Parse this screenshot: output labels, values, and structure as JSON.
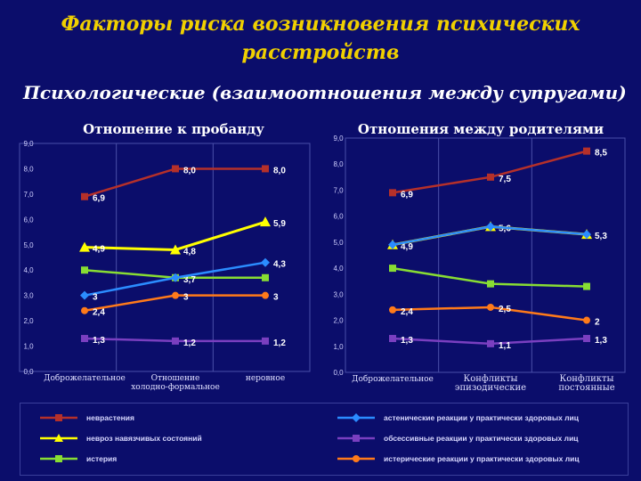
{
  "title_line1": "Факторы риска возникновения психических",
  "title_line2": "расстройств",
  "subtitle": "Психологические (взаимоотношения между супругами)",
  "colors": {
    "background": "#0b0d6b",
    "title": "#f0d000",
    "grid": "#4a4fa8"
  },
  "legend": [
    {
      "name": "неврастения",
      "color": "#b5302a",
      "marker": "square"
    },
    {
      "name": "невроз навязчивых состояний",
      "color": "#ffff00",
      "marker": "triangle"
    },
    {
      "name": "истерия",
      "color": "#88dd33",
      "marker": "square"
    },
    {
      "name": "астенические реакции у практически здоровых лиц",
      "color": "#2b8cff",
      "marker": "diamond"
    },
    {
      "name": "обсессивные реакции у практически здоровых лиц",
      "color": "#7a3fc0",
      "marker": "square"
    },
    {
      "name": "истерические реакции у практически здоровых лиц",
      "color": "#ff7a1a",
      "marker": "circle"
    }
  ],
  "chart_data": [
    {
      "type": "line",
      "title": "Отношение к пробанду",
      "categories": [
        "Доброжелательное",
        "Отношение холодно-формальное",
        "неровное"
      ],
      "y_tick_labels": [
        "0,0",
        "1,0",
        "2,0",
        "3,0",
        "4,0",
        "5,0",
        "6,0",
        "7,0",
        "8,0",
        "9,0"
      ],
      "ylim": [
        0,
        9
      ],
      "grid": true,
      "series": [
        {
          "name": "неврастения",
          "values": [
            6.9,
            8.0,
            8.0
          ],
          "labels": [
            "6,9",
            "8,0",
            "8,0"
          ]
        },
        {
          "name": "невроз навязчивых состояний",
          "values": [
            4.9,
            4.8,
            5.9
          ],
          "labels": [
            "4,9",
            "4,8",
            "5,9"
          ]
        },
        {
          "name": "истерия",
          "values": [
            4.0,
            3.7,
            3.7
          ],
          "labels": [
            "",
            "3,7",
            ""
          ]
        },
        {
          "name": "астенические реакции у практически здоровых лиц",
          "values": [
            3.0,
            3.7,
            4.3
          ],
          "labels": [
            "3",
            "",
            "4,3"
          ]
        },
        {
          "name": "обсессивные реакции у практически здоровых лиц",
          "values": [
            1.3,
            1.2,
            1.2
          ],
          "labels": [
            "1,3",
            "1,2",
            "1,2"
          ]
        },
        {
          "name": "истерические реакции у практически здоровых лиц",
          "values": [
            2.4,
            3.0,
            3.0
          ],
          "labels": [
            "2,4",
            "3",
            "3"
          ]
        }
      ]
    },
    {
      "type": "line",
      "title": "Отношения между родителями",
      "categories": [
        "Доброжелательное",
        "Конфликты эпизодические",
        "Конфликты постоянные"
      ],
      "y_tick_labels": [
        "0,0",
        "1,0",
        "2,0",
        "3,0",
        "4,0",
        "5,0",
        "6,0",
        "7,0",
        "8,0",
        "9,0"
      ],
      "ylim": [
        0,
        9
      ],
      "grid": true,
      "series": [
        {
          "name": "неврастения",
          "values": [
            6.9,
            7.5,
            8.5
          ],
          "labels": [
            "6,9",
            "7,5",
            "8,5"
          ]
        },
        {
          "name": "невроз навязчивых состояний",
          "values": [
            4.9,
            5.6,
            5.3
          ],
          "labels": [
            "4,9",
            "5,6",
            "5,3"
          ]
        },
        {
          "name": "истерия",
          "values": [
            4.0,
            3.4,
            3.3
          ],
          "labels": [
            "",
            "",
            ""
          ]
        },
        {
          "name": "астенические реакции у практически здоровых лиц",
          "values": [
            4.9,
            5.6,
            5.3
          ],
          "labels": [
            "",
            "",
            ""
          ]
        },
        {
          "name": "обсессивные реакции у практически здоровых лиц",
          "values": [
            1.3,
            1.1,
            1.3
          ],
          "labels": [
            "1,3",
            "1,1",
            "1,3"
          ]
        },
        {
          "name": "истерические реакции у практически здоровых лиц",
          "values": [
            2.4,
            2.5,
            2.0
          ],
          "labels": [
            "2,4",
            "2,5",
            "2"
          ]
        }
      ]
    }
  ]
}
